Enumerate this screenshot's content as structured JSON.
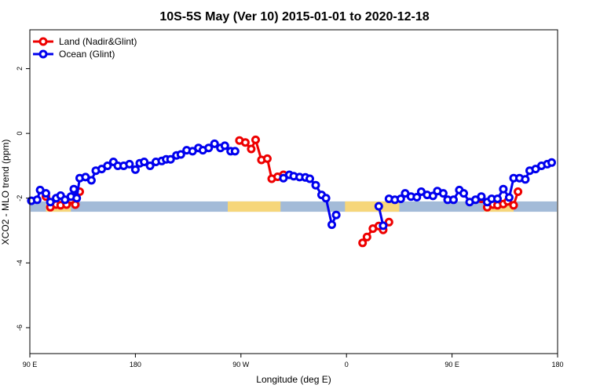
{
  "chart_data": {
    "type": "line",
    "title": "10S-5S May (Ver 10)   2015-01-01 to 2020-12-18",
    "xlabel": "Longitude (deg E)",
    "ylabel": "XCO2 - MLO trend (ppm)",
    "xlim": [
      90,
      450
    ],
    "ylim": [
      -6.8,
      3.2
    ],
    "x_ticks": [
      {
        "value": 90,
        "label": "90 E"
      },
      {
        "value": 162,
        "label": "180"
      },
      {
        "value": 234,
        "label": "90 W"
      },
      {
        "value": 306,
        "label": "0"
      },
      {
        "value": 378,
        "label": "90 E"
      },
      {
        "value": 450,
        "label": "180"
      }
    ],
    "y_ticks": [
      2,
      0,
      -2,
      -4,
      -6
    ],
    "legend_position": "top-left",
    "grid": false,
    "series": [
      {
        "name": "Land (Nadir&Glint)",
        "color": "#ee0000",
        "segments": [
          [
            [
              101,
              -1.95
            ],
            [
              104,
              -2.28
            ],
            [
              108,
              -2.2
            ],
            [
              111,
              -2.22
            ],
            [
              115,
              -2.2
            ],
            [
              118,
              -2.05
            ],
            [
              121,
              -2.2
            ],
            [
              124,
              -1.8
            ]
          ],
          [
            [
              233,
              -0.22
            ],
            [
              237,
              -0.28
            ],
            [
              241,
              -0.48
            ],
            [
              244,
              -0.2
            ],
            [
              248,
              -0.82
            ],
            [
              252,
              -0.78
            ],
            [
              255,
              -1.4
            ],
            [
              259,
              -1.34
            ],
            [
              263,
              -1.28
            ]
          ],
          [
            [
              317,
              -3.38
            ],
            [
              320,
              -3.2
            ],
            [
              324,
              -2.94
            ],
            [
              328,
              -2.86
            ],
            [
              331,
              -2.98
            ],
            [
              335,
              -2.74
            ]
          ],
          [
            [
              398,
              -2.02
            ],
            [
              402,
              -2.28
            ],
            [
              406,
              -2.2
            ],
            [
              409,
              -2.22
            ],
            [
              413,
              -2.18
            ],
            [
              416,
              -2.1
            ],
            [
              420,
              -2.22
            ],
            [
              423,
              -1.8
            ]
          ]
        ]
      },
      {
        "name": "Ocean (Glint)",
        "color": "#0000ee",
        "segments": [
          [
            [
              91,
              -2.08
            ],
            [
              95,
              -2.05
            ],
            [
              97,
              -1.75
            ],
            [
              101,
              -1.85
            ],
            [
              104,
              -2.12
            ],
            [
              108,
              -2.0
            ],
            [
              111,
              -1.92
            ],
            [
              114,
              -2.05
            ],
            [
              118,
              -1.95
            ],
            [
              120,
              -1.72
            ],
            [
              122,
              -2.0
            ],
            [
              124,
              -1.38
            ],
            [
              128,
              -1.35
            ],
            [
              132,
              -1.45
            ],
            [
              135,
              -1.15
            ],
            [
              139,
              -1.1
            ],
            [
              143,
              -1.0
            ],
            [
              147,
              -0.88
            ],
            [
              150,
              -1.0
            ],
            [
              154,
              -1.0
            ],
            [
              158,
              -0.95
            ],
            [
              162,
              -1.12
            ],
            [
              165,
              -0.92
            ],
            [
              168,
              -0.88
            ],
            [
              172,
              -1.0
            ],
            [
              176,
              -0.88
            ],
            [
              180,
              -0.85
            ],
            [
              183,
              -0.8
            ],
            [
              186,
              -0.8
            ],
            [
              190,
              -0.68
            ],
            [
              193,
              -0.65
            ],
            [
              197,
              -0.52
            ],
            [
              201,
              -0.55
            ],
            [
              205,
              -0.45
            ],
            [
              208,
              -0.52
            ],
            [
              212,
              -0.45
            ],
            [
              216,
              -0.32
            ],
            [
              220,
              -0.45
            ],
            [
              223,
              -0.38
            ],
            [
              227,
              -0.55
            ],
            [
              230,
              -0.55
            ]
          ],
          [
            [
              263,
              -1.38
            ],
            [
              267,
              -1.28
            ],
            [
              270,
              -1.32
            ],
            [
              274,
              -1.35
            ],
            [
              278,
              -1.36
            ],
            [
              281,
              -1.4
            ],
            [
              285,
              -1.6
            ],
            [
              289,
              -1.9
            ],
            [
              292,
              -2.0
            ],
            [
              296,
              -2.82
            ],
            [
              299,
              -2.52
            ]
          ],
          [
            [
              328,
              -2.25
            ],
            [
              331,
              -2.85
            ]
          ],
          [
            [
              335,
              -2.02
            ],
            [
              339,
              -2.05
            ],
            [
              343,
              -2.02
            ],
            [
              346,
              -1.85
            ],
            [
              350,
              -1.95
            ],
            [
              354,
              -1.97
            ],
            [
              357,
              -1.8
            ],
            [
              361,
              -1.9
            ],
            [
              365,
              -1.93
            ],
            [
              368,
              -1.78
            ],
            [
              372,
              -1.85
            ],
            [
              375,
              -2.05
            ],
            [
              379,
              -2.05
            ],
            [
              383,
              -1.75
            ],
            [
              386,
              -1.85
            ],
            [
              390,
              -2.12
            ],
            [
              394,
              -2.05
            ],
            [
              398,
              -1.95
            ],
            [
              402,
              -2.12
            ],
            [
              405,
              -2.02
            ],
            [
              409,
              -2.02
            ],
            [
              413,
              -1.72
            ],
            [
              417,
              -1.98
            ],
            [
              420,
              -1.38
            ],
            [
              424,
              -1.38
            ],
            [
              428,
              -1.42
            ],
            [
              431,
              -1.15
            ],
            [
              435,
              -1.1
            ],
            [
              439,
              -1.0
            ],
            [
              443,
              -0.95
            ],
            [
              446,
              -0.9
            ]
          ]
        ]
      }
    ],
    "surface_band": {
      "y_range": [
        -2.42,
        -2.1
      ],
      "ocean_color": "#a3bbd8",
      "land_color": "#f6d67a",
      "land_ranges": [
        [
          101,
          118
        ],
        [
          225,
          261
        ],
        [
          305,
          342
        ],
        [
          400,
          420
        ]
      ]
    }
  }
}
